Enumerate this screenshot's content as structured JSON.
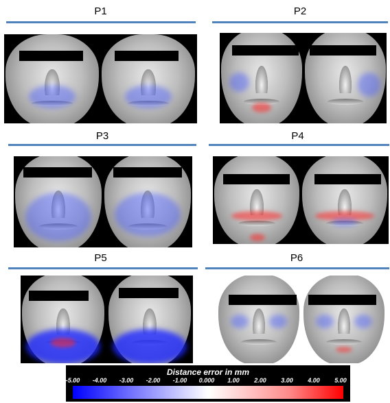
{
  "panels": [
    {
      "title": "P1"
    },
    {
      "title": "P2"
    },
    {
      "title": "P3"
    },
    {
      "title": "P4"
    },
    {
      "title": "P5"
    },
    {
      "title": "P6"
    }
  ],
  "colorbar": {
    "title": "Distance error in mm",
    "ticks": [
      "-5.00",
      "-4.00",
      "-3.00",
      "-2.00",
      "-1.00",
      "0.000",
      "1.00",
      "2.00",
      "3.00",
      "4.00",
      "5.00"
    ],
    "min_color": "#0000ff",
    "mid_color": "#ffffff",
    "max_color": "#ff0000"
  }
}
